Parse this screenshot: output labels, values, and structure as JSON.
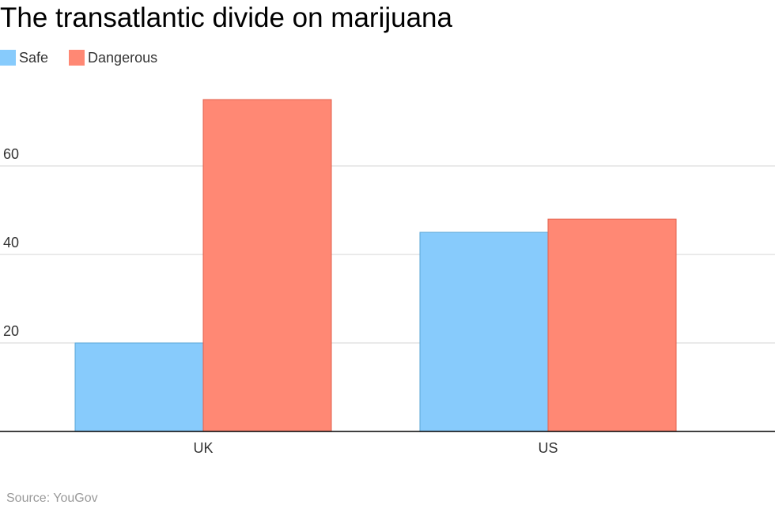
{
  "title": "The transatlantic divide on marijuana",
  "source": "Source: YouGov",
  "chart_data": {
    "type": "bar",
    "title": "The transatlantic divide on marijuana",
    "categories": [
      "UK",
      "US"
    ],
    "series": [
      {
        "name": "Safe",
        "color": "#87CBFC",
        "values": [
          20,
          45
        ]
      },
      {
        "name": "Dangerous",
        "color": "#FF8874",
        "values": [
          75,
          48
        ]
      }
    ],
    "yticks": [
      20,
      40,
      60
    ],
    "ylim": [
      0,
      80
    ],
    "grid": true,
    "legend": "top-left",
    "xlabel": "",
    "ylabel": ""
  }
}
